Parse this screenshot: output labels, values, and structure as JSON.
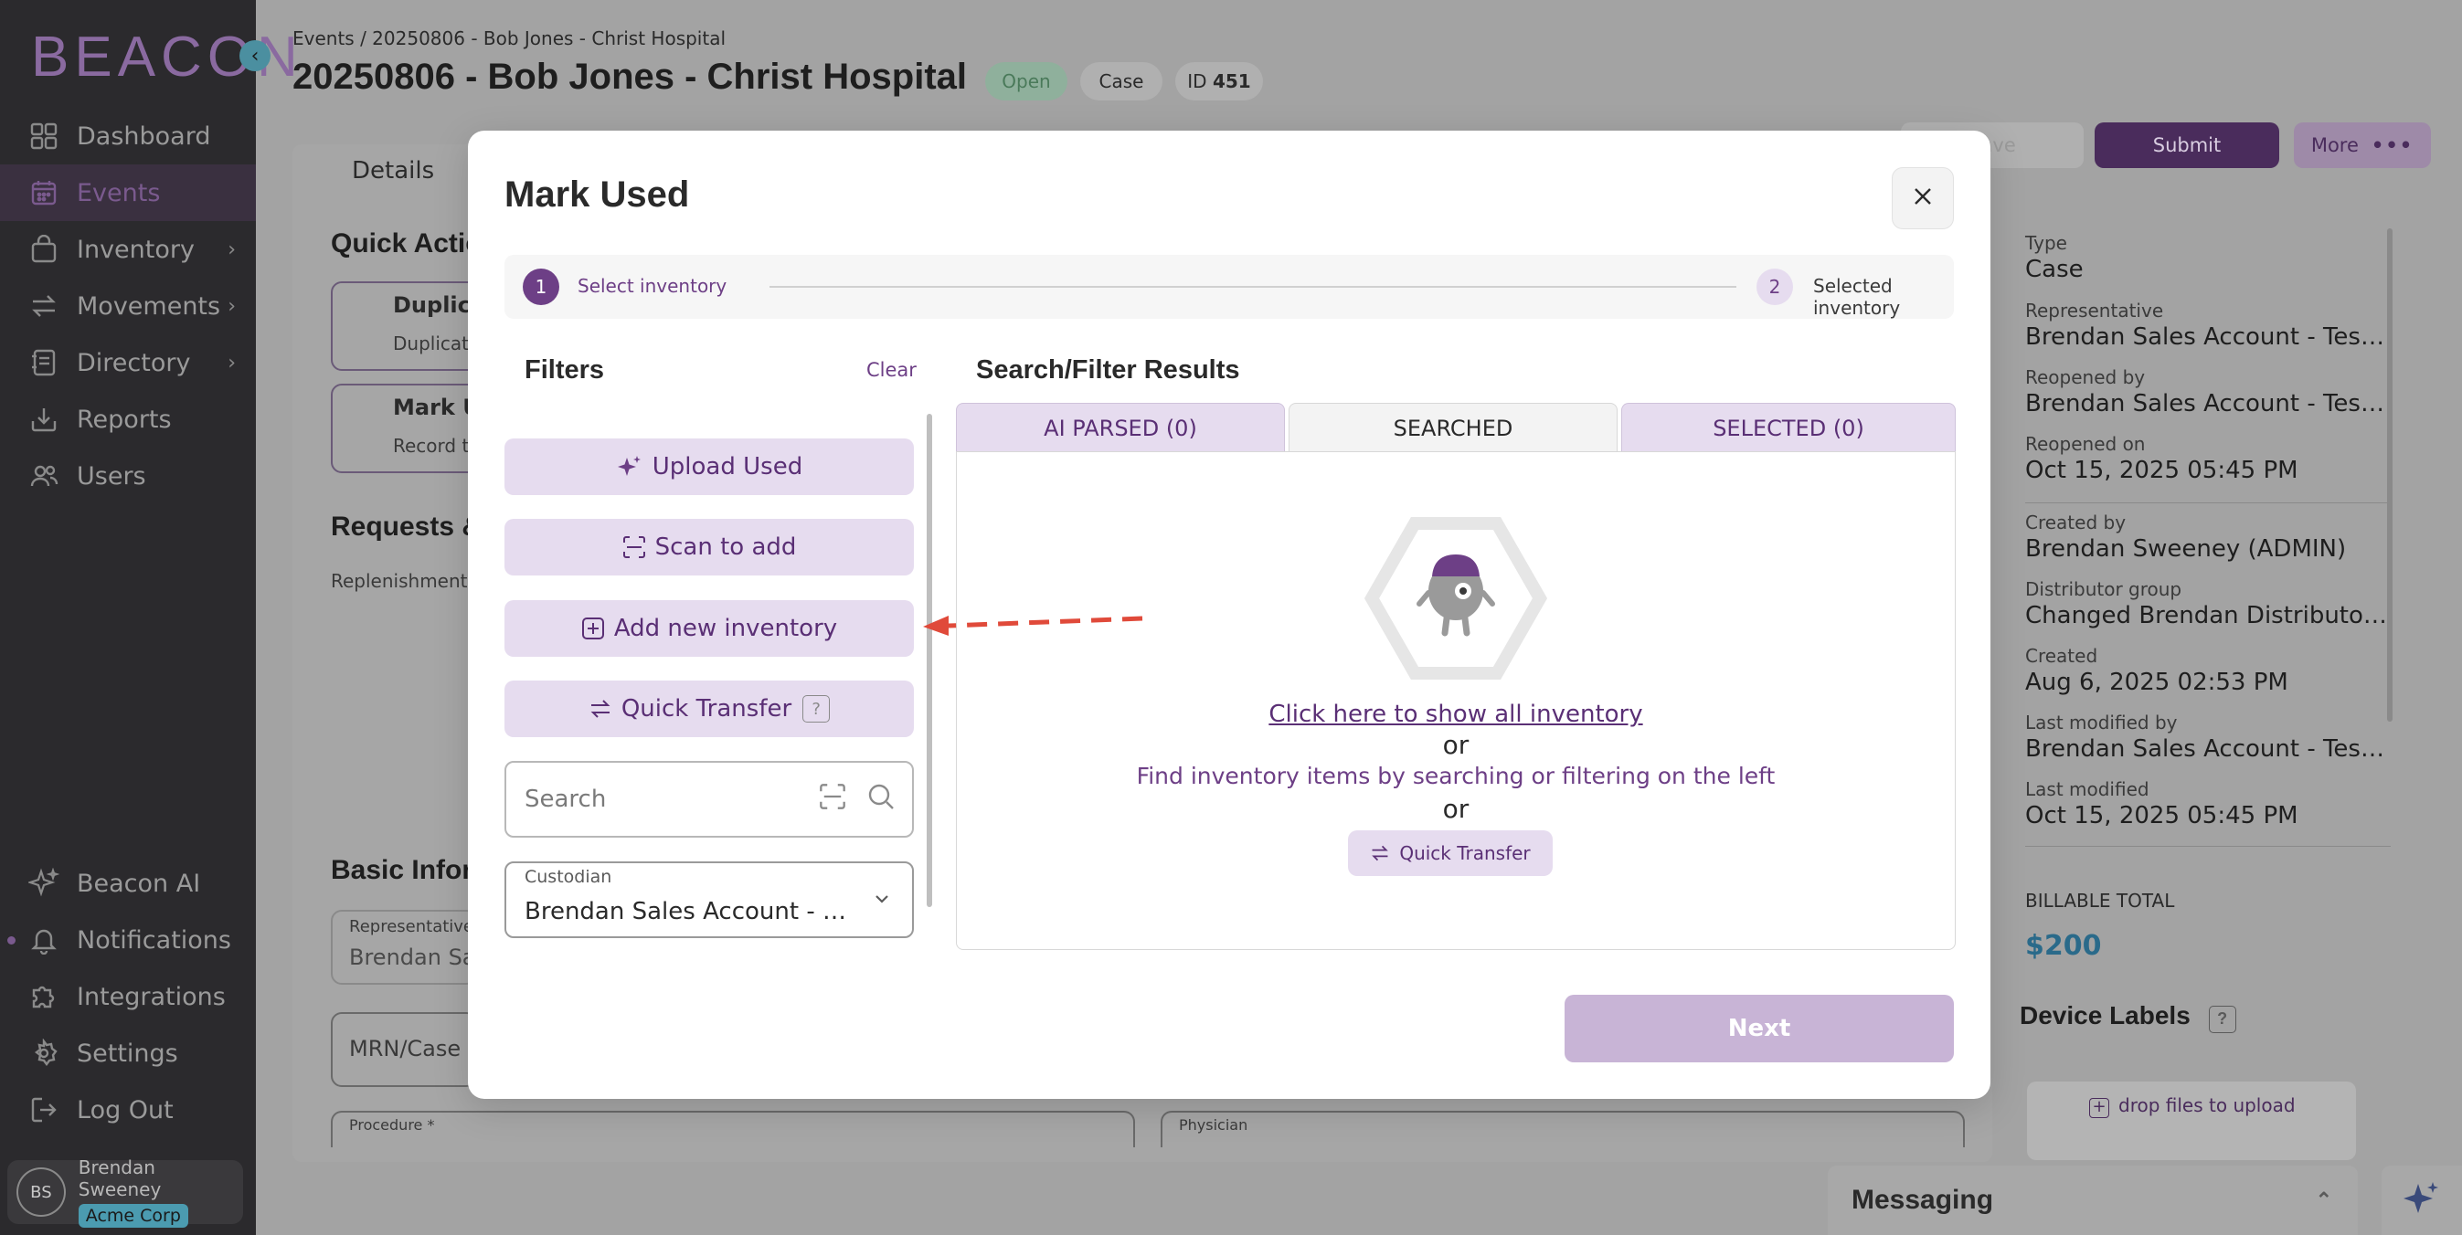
{
  "sidebar": {
    "logo": "BEACON",
    "items": [
      {
        "label": "Dashboard",
        "icon": "dashboard-icon"
      },
      {
        "label": "Events",
        "icon": "calendar-icon",
        "active": true
      },
      {
        "label": "Inventory",
        "icon": "inventory-icon",
        "has_children": true
      },
      {
        "label": "Movements",
        "icon": "arrows-icon",
        "has_children": true
      },
      {
        "label": "Directory",
        "icon": "directory-icon",
        "has_children": true
      },
      {
        "label": "Reports",
        "icon": "reports-icon"
      },
      {
        "label": "Users",
        "icon": "users-icon"
      }
    ],
    "bottom_items": [
      {
        "label": "Beacon AI",
        "icon": "sparkle-icon"
      },
      {
        "label": "Notifications",
        "icon": "bell-icon"
      },
      {
        "label": "Integrations",
        "icon": "puzzle-icon"
      },
      {
        "label": "Settings",
        "icon": "gear-icon"
      },
      {
        "label": "Log Out",
        "icon": "logout-icon"
      }
    ],
    "user": {
      "initials": "BS",
      "name": "Brendan Sweeney",
      "org": "Acme Corp"
    }
  },
  "header": {
    "breadcrumb": "Events / 20250806 - Bob Jones - Christ Hospital",
    "title": "20250806 - Bob Jones - Christ Hospital",
    "status": "Open",
    "type": "Case",
    "id_prefix": "ID",
    "id_value": "451",
    "submit_label": "Submit",
    "more_label": "More",
    "save_label": "Save"
  },
  "background": {
    "tab_details": "Details",
    "quick_actions_title": "Quick Actio",
    "duplicate_title": "Duplica",
    "duplicate_sub": "Duplicat",
    "mark_used_title": "Mark U",
    "mark_used_sub": "Record th",
    "requests_title": "Requests &",
    "replenishment": "Replenishment R",
    "basic_info_title": "Basic Inform",
    "representative_label": "Representative",
    "representative_value": "Brendan Sa",
    "mrn_label": "MRN/Case",
    "procedure_label": "Procedure *",
    "physician_label": "Physician"
  },
  "right_panel": {
    "fields": [
      {
        "label": "Type",
        "value": "Case"
      },
      {
        "label": "Representative",
        "value": "Brendan Sales Account - Testing"
      },
      {
        "label": "Reopened by",
        "value": "Brendan Sales Account - Testin..."
      },
      {
        "label": "Reopened on",
        "value": "Oct 15, 2025 05:45 PM"
      },
      {
        "label": "Created by",
        "value": "Brendan Sweeney (ADMIN)"
      },
      {
        "label": "Distributor group",
        "value": "Changed Brendan Distributor S..."
      },
      {
        "label": "Created",
        "value": "Aug 6, 2025 02:53 PM"
      },
      {
        "label": "Last modified by",
        "value": "Brendan Sales Account - Testin..."
      },
      {
        "label": "Last modified",
        "value": "Oct 15, 2025 05:45 PM"
      }
    ],
    "billable_label": "BILLABLE TOTAL",
    "billable_value": "$200",
    "device_labels_title": "Device Labels",
    "drop_files": "drop files to upload"
  },
  "messaging": {
    "title": "Messaging"
  },
  "modal": {
    "title": "Mark Used",
    "steps": [
      {
        "num": "1",
        "label": "Select inventory"
      },
      {
        "num": "2",
        "label": "Selected inventory"
      }
    ],
    "filters": {
      "title": "Filters",
      "clear": "Clear",
      "upload_used": "Upload Used",
      "scan_to_add": "Scan to add",
      "add_new_inventory": "Add new inventory",
      "quick_transfer": "Quick Transfer",
      "help": "?",
      "search_placeholder": "Search",
      "custodian_label": "Custodian",
      "custodian_value": "Brendan Sales Account - Tes..."
    },
    "results": {
      "title": "Search/Filter Results",
      "tabs": [
        "AI PARSED (0)",
        "SEARCHED",
        "SELECTED (0)"
      ],
      "show_all": "Click here to show all inventory",
      "or": "or",
      "find_text": "Find inventory items by searching or filtering on the left",
      "quick_transfer": "Quick Transfer"
    },
    "next": "Next"
  },
  "colors": {
    "accent": "#5a2f75",
    "accent_light": "#e6dcef",
    "overlay": "#a3a3a3",
    "annotation_arrow": "#e04a3a"
  }
}
